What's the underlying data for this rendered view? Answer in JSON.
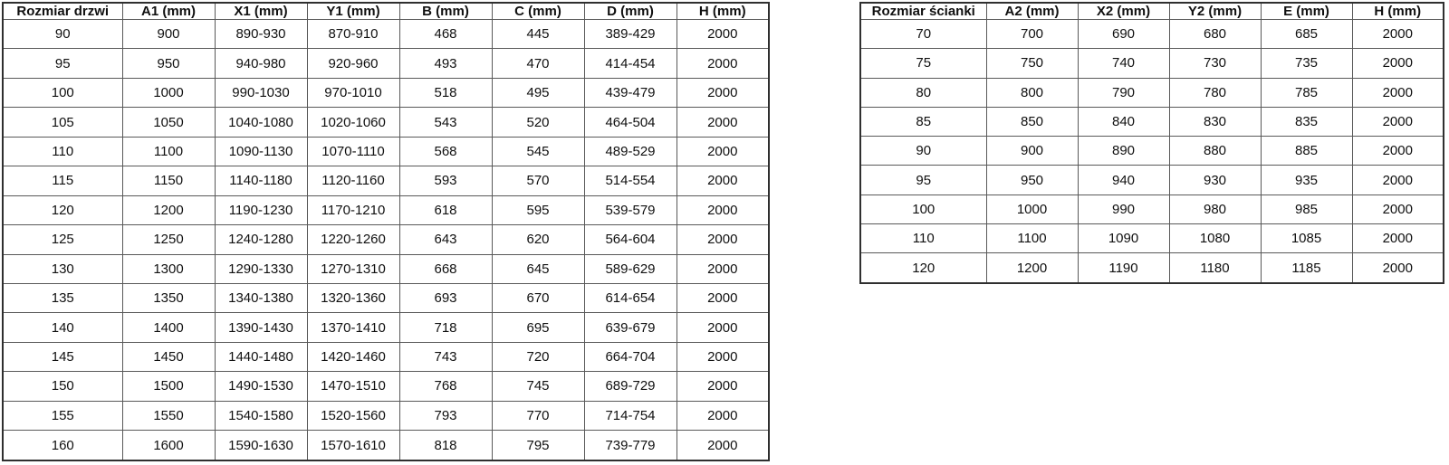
{
  "page": {
    "background_color": "#ffffff",
    "border_color": "#595959",
    "outer_border_color": "#2f2f2f",
    "text_color": "#101010"
  },
  "chart_data": [
    {
      "type": "table",
      "title": "",
      "headers": [
        "Rozmiar drzwi",
        "A1 (mm)",
        "X1 (mm)",
        "Y1 (mm)",
        "B (mm)",
        "C (mm)",
        "D (mm)",
        "H (mm)"
      ],
      "rows": [
        [
          "90",
          "900",
          "890-930",
          "870-910",
          "468",
          "445",
          "389-429",
          "2000"
        ],
        [
          "95",
          "950",
          "940-980",
          "920-960",
          "493",
          "470",
          "414-454",
          "2000"
        ],
        [
          "100",
          "1000",
          "990-1030",
          "970-1010",
          "518",
          "495",
          "439-479",
          "2000"
        ],
        [
          "105",
          "1050",
          "1040-1080",
          "1020-1060",
          "543",
          "520",
          "464-504",
          "2000"
        ],
        [
          "110",
          "1100",
          "1090-1130",
          "1070-1110",
          "568",
          "545",
          "489-529",
          "2000"
        ],
        [
          "115",
          "1150",
          "1140-1180",
          "1120-1160",
          "593",
          "570",
          "514-554",
          "2000"
        ],
        [
          "120",
          "1200",
          "1190-1230",
          "1170-1210",
          "618",
          "595",
          "539-579",
          "2000"
        ],
        [
          "125",
          "1250",
          "1240-1280",
          "1220-1260",
          "643",
          "620",
          "564-604",
          "2000"
        ],
        [
          "130",
          "1300",
          "1290-1330",
          "1270-1310",
          "668",
          "645",
          "589-629",
          "2000"
        ],
        [
          "135",
          "1350",
          "1340-1380",
          "1320-1360",
          "693",
          "670",
          "614-654",
          "2000"
        ],
        [
          "140",
          "1400",
          "1390-1430",
          "1370-1410",
          "718",
          "695",
          "639-679",
          "2000"
        ],
        [
          "145",
          "1450",
          "1440-1480",
          "1420-1460",
          "743",
          "720",
          "664-704",
          "2000"
        ],
        [
          "150",
          "1500",
          "1490-1530",
          "1470-1510",
          "768",
          "745",
          "689-729",
          "2000"
        ],
        [
          "155",
          "1550",
          "1540-1580",
          "1520-1560",
          "793",
          "770",
          "714-754",
          "2000"
        ],
        [
          "160",
          "1600",
          "1590-1630",
          "1570-1610",
          "818",
          "795",
          "739-779",
          "2000"
        ]
      ]
    },
    {
      "type": "table",
      "title": "",
      "headers": [
        "Rozmiar ścianki",
        "A2 (mm)",
        "X2 (mm)",
        "Y2 (mm)",
        "E (mm)",
        "H (mm)"
      ],
      "rows": [
        [
          "70",
          "700",
          "690",
          "680",
          "685",
          "2000"
        ],
        [
          "75",
          "750",
          "740",
          "730",
          "735",
          "2000"
        ],
        [
          "80",
          "800",
          "790",
          "780",
          "785",
          "2000"
        ],
        [
          "85",
          "850",
          "840",
          "830",
          "835",
          "2000"
        ],
        [
          "90",
          "900",
          "890",
          "880",
          "885",
          "2000"
        ],
        [
          "95",
          "950",
          "940",
          "930",
          "935",
          "2000"
        ],
        [
          "100",
          "1000",
          "990",
          "980",
          "985",
          "2000"
        ],
        [
          "110",
          "1100",
          "1090",
          "1080",
          "1085",
          "2000"
        ],
        [
          "120",
          "1200",
          "1190",
          "1180",
          "1185",
          "2000"
        ]
      ]
    }
  ]
}
